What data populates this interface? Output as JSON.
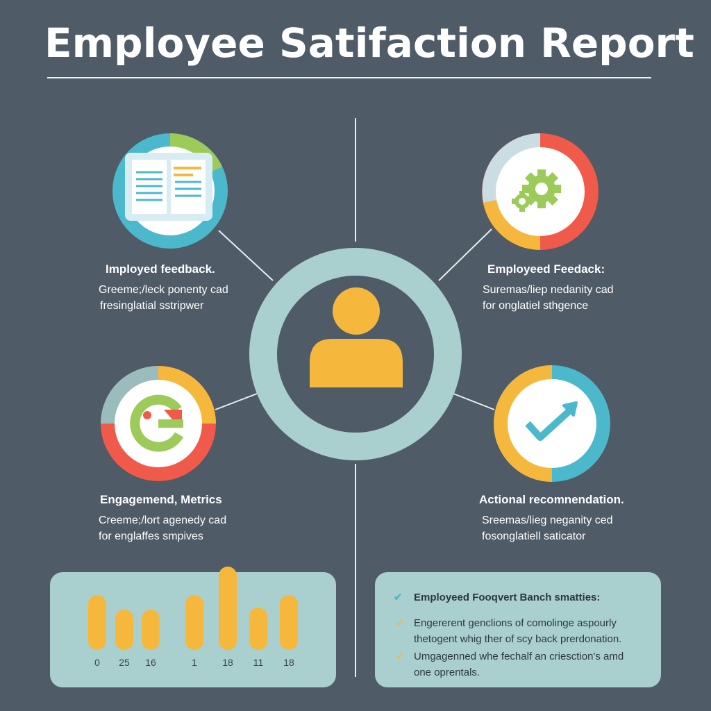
{
  "header": {
    "title": "Employee Satifaction Report"
  },
  "sections": {
    "top_left": {
      "title": "Imployed feedback.",
      "lines": [
        "Greeme;/leck ponenty cad",
        "fresinglatial sstripwer"
      ]
    },
    "top_right": {
      "title": "Employeed Feedack:",
      "lines": [
        "Suremas/liep nedanity cad",
        "for onglatiel sthgence"
      ]
    },
    "bottom_left": {
      "title": "Engagemend, Metrics",
      "lines": [
        "Creeme;/lort agenedy cad",
        "for englaffes smpives"
      ]
    },
    "bottom_right": {
      "title": "Actional recomnendation.",
      "lines": [
        "Sreemas/lieg neganity ced",
        "fosonglatiell saticator"
      ]
    }
  },
  "icons": {
    "center": "person-icon",
    "top_left": "document-icon",
    "top_right": "gear-icon",
    "bottom_left": "g-logo-icon",
    "bottom_right": "trend-check-icon"
  },
  "colors": {
    "background": "#4f5b66",
    "teal": "#4bb8cc",
    "yellow": "#f5b83d",
    "green": "#9ccb5a",
    "red": "#ef5a4a",
    "light": "#a9cfcf"
  },
  "chart_data": {
    "type": "bar",
    "categories": [
      "0",
      "25",
      "16",
      "1",
      "18",
      "11",
      "18"
    ],
    "values": [
      0.62,
      0.45,
      0.45,
      0.62,
      0.94,
      0.48,
      0.62
    ]
  },
  "recommendations": {
    "heading": "Employeed Fooqvert Banch smatties:",
    "items": [
      {
        "lines": [
          "Engererent genclions of comolinge aspourly",
          "thetogent whig ther of scy back prerdonation."
        ]
      },
      {
        "lines": [
          "Umgagenned whe fechalf an criesction's amd",
          "one oprentals."
        ]
      }
    ]
  }
}
